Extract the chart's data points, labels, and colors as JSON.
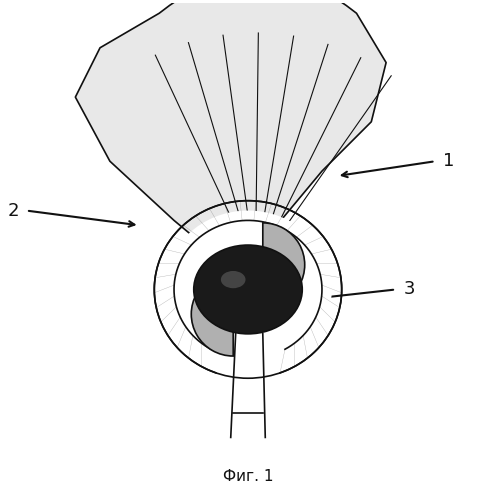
{
  "title": "",
  "caption": "Фиг. 1",
  "label1_text": "1",
  "label2_text": "2",
  "label3_text": "3",
  "bg_color": "#ffffff",
  "fan_fill": "#e8e8e8",
  "fan_stripe_color": "#333333",
  "cup_fill": "#f0f0f0",
  "head_fill": "#1a1a1a",
  "partial_arc_fill": "#b0b0b0",
  "line_color": "#111111"
}
